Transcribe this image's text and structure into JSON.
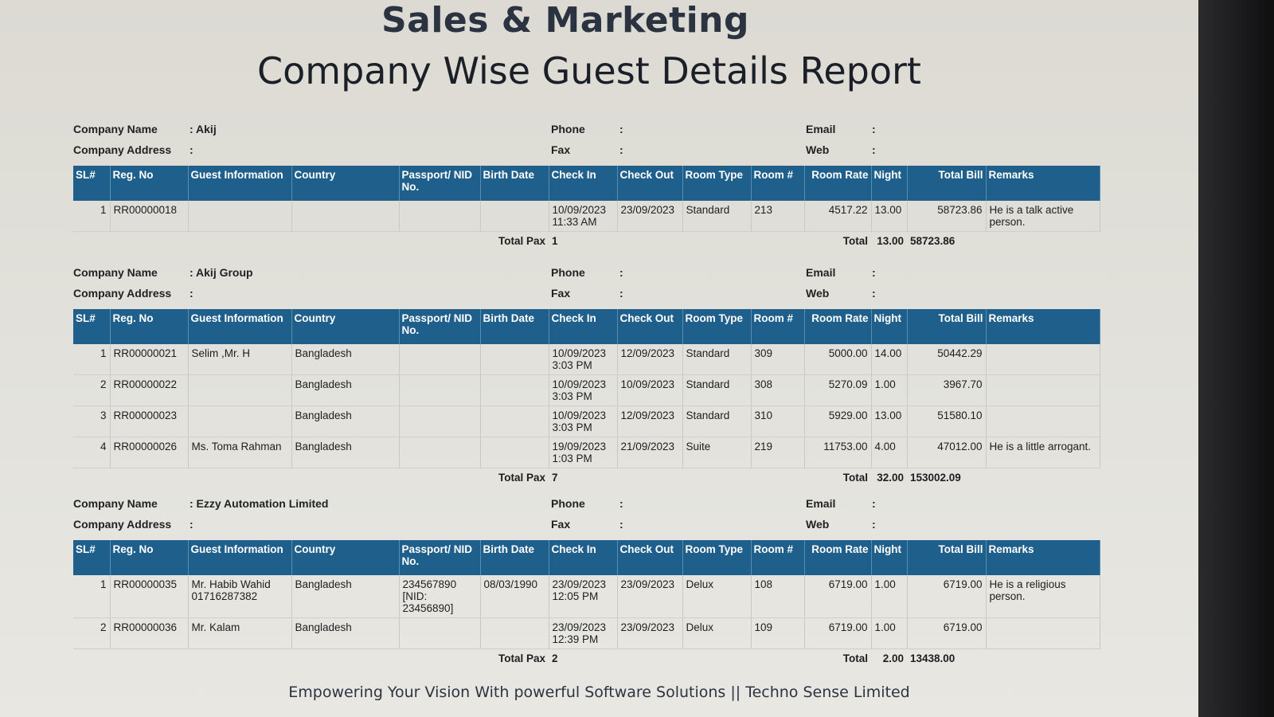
{
  "report": {
    "title": "Sales & Marketing",
    "subtitle": "Company Wise Guest Details Report"
  },
  "labels": {
    "company_name": "Company Name",
    "company_address": "Company Address",
    "phone": "Phone",
    "fax": "Fax",
    "email": "Email",
    "web": "Web",
    "colon": ":",
    "total_pax": "Total Pax",
    "total": "Total"
  },
  "columns": [
    "SL#",
    "Reg. No",
    "Guest Information",
    "Country",
    "Passport/ NID No.",
    "Birth Date",
    "Check In",
    "Check Out",
    "Room Type",
    "Room #",
    "Room  Rate",
    "Night",
    "Total Bill",
    "Remarks"
  ],
  "companies": [
    {
      "name": ": Akij",
      "address": ":",
      "phone": ":",
      "fax": ":",
      "email": ":",
      "web": ":",
      "rows": [
        {
          "sl": "1",
          "reg": "RR00000018",
          "guest": "",
          "country": "",
          "passport": "",
          "birth": "",
          "checkin": "10/09/2023 11:33 AM",
          "checkout": "23/09/2023",
          "roomtype": "Standard",
          "room": "213",
          "rate": "4517.22",
          "night": "13.00",
          "bill": "58723.86",
          "remarks": "He is a talk active person."
        }
      ],
      "total_pax": "1",
      "total_night": "13.00",
      "total_bill": "58723.86"
    },
    {
      "name": ": Akij Group",
      "address": ":",
      "phone": ":",
      "fax": ":",
      "email": ":",
      "web": ":",
      "rows": [
        {
          "sl": "1",
          "reg": "RR00000021",
          "guest": "Selim ,Mr. H",
          "country": "Bangladesh",
          "passport": "",
          "birth": "",
          "checkin": "10/09/2023 3:03 PM",
          "checkout": "12/09/2023",
          "roomtype": "Standard",
          "room": "309",
          "rate": "5000.00",
          "night": "14.00",
          "bill": "50442.29",
          "remarks": ""
        },
        {
          "sl": "2",
          "reg": "RR00000022",
          "guest": "",
          "country": "Bangladesh",
          "passport": "",
          "birth": "",
          "checkin": "10/09/2023 3:03 PM",
          "checkout": "10/09/2023",
          "roomtype": "Standard",
          "room": "308",
          "rate": "5270.09",
          "night": "1.00",
          "bill": "3967.70",
          "remarks": ""
        },
        {
          "sl": "3",
          "reg": "RR00000023",
          "guest": "",
          "country": "Bangladesh",
          "passport": "",
          "birth": "",
          "checkin": "10/09/2023 3:03 PM",
          "checkout": "12/09/2023",
          "roomtype": "Standard",
          "room": "310",
          "rate": "5929.00",
          "night": "13.00",
          "bill": "51580.10",
          "remarks": ""
        },
        {
          "sl": "4",
          "reg": "RR00000026",
          "guest": "Ms. Toma Rahman",
          "country": "Bangladesh",
          "passport": "",
          "birth": "",
          "checkin": "19/09/2023 1:03 PM",
          "checkout": "21/09/2023",
          "roomtype": "Suite",
          "room": "219",
          "rate": "11753.00",
          "night": "4.00",
          "bill": "47012.00",
          "remarks": "He is a little arrogant."
        }
      ],
      "total_pax": "7",
      "total_night": "32.00",
      "total_bill": "153002.09"
    },
    {
      "name": ": Ezzy Automation Limited",
      "address": ":",
      "phone": ":",
      "fax": ":",
      "email": ":",
      "web": ":",
      "rows": [
        {
          "sl": "1",
          "reg": "RR00000035",
          "guest": "Mr. Habib Wahid 01716287382",
          "country": "Bangladesh",
          "passport": "234567890 [NID: 23456890]",
          "birth": "08/03/1990",
          "checkin": "23/09/2023 12:05 PM",
          "checkout": "23/09/2023",
          "roomtype": "Delux",
          "room": "108",
          "rate": "6719.00",
          "night": "1.00",
          "bill": "6719.00",
          "remarks": "He is a religious person."
        },
        {
          "sl": "2",
          "reg": "RR00000036",
          "guest": "Mr. Kalam",
          "country": "Bangladesh",
          "passport": "",
          "birth": "",
          "checkin": "23/09/2023 12:39 PM",
          "checkout": "23/09/2023",
          "roomtype": "Delux",
          "room": "109",
          "rate": "6719.00",
          "night": "1.00",
          "bill": "6719.00",
          "remarks": ""
        }
      ],
      "total_pax": "2",
      "total_night": "2.00",
      "total_bill": "13438.00"
    }
  ],
  "footer": "Empowering Your Vision With powerful Software Solutions || Techno Sense Limited"
}
